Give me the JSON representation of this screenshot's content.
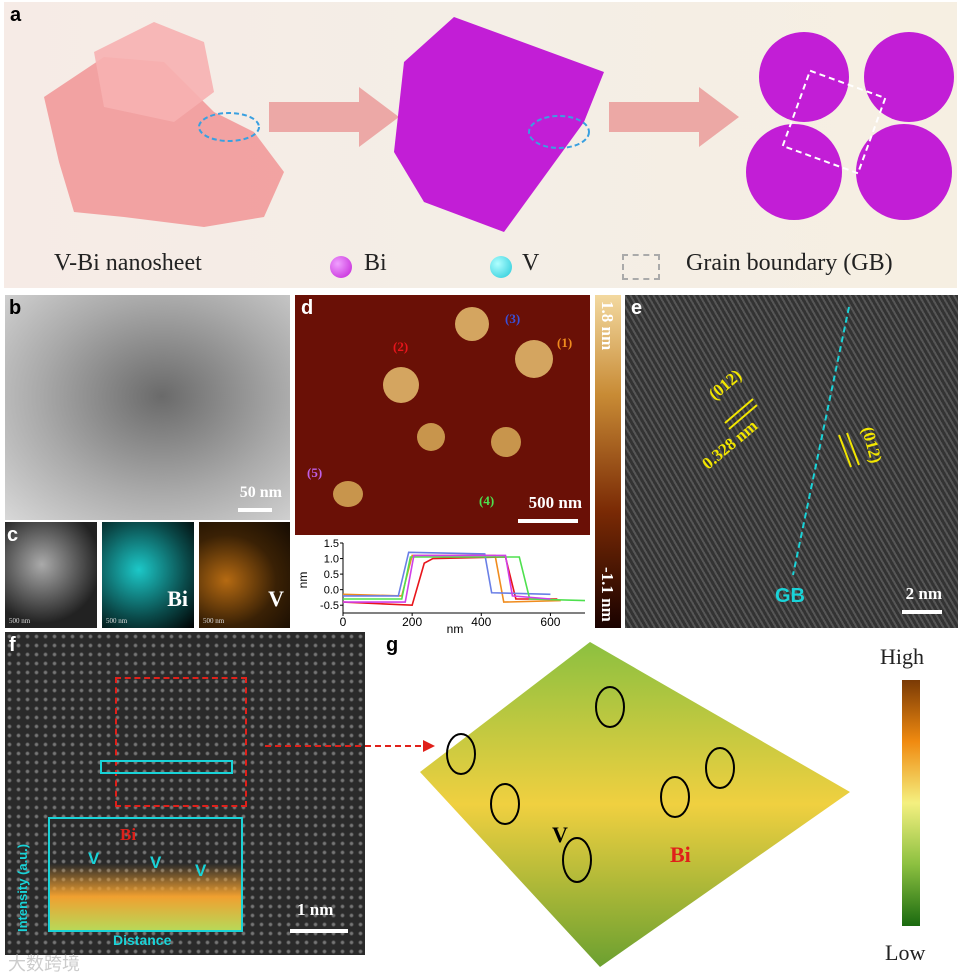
{
  "panels": {
    "a": {
      "label": "a",
      "legend": {
        "nanosheet": "V-Bi nanosheet",
        "bi": "Bi",
        "v": "V",
        "gb": "Grain boundary (GB)"
      }
    },
    "b": {
      "label": "b",
      "scale": "50 nm"
    },
    "c": {
      "label": "c",
      "maps": [
        {
          "label": "",
          "scale": "500 nm"
        },
        {
          "label": "Bi",
          "scale": "500 nm"
        },
        {
          "label": "V",
          "scale": "500 nm"
        }
      ]
    },
    "d": {
      "label": "d",
      "scale": "500 nm",
      "profiles": [
        "(1)",
        "(2)",
        "(3)",
        "(4)",
        "(5)"
      ],
      "colorbar": {
        "max": "1.8 nm",
        "min": "-1.1 nm"
      }
    },
    "e": {
      "label": "e",
      "plane1": "(012)",
      "spacing": "0.328 nm",
      "plane2": "(012)",
      "gb": "GB",
      "scale": "2 nm"
    },
    "f": {
      "label": "f",
      "inset": {
        "ylabel": "Intensity (a.u.)",
        "xlabel": "Distance",
        "bi": "Bi",
        "v1": "V",
        "v2": "V",
        "v3": "V"
      },
      "scale": "1 nm"
    },
    "g": {
      "label": "g",
      "v": "V",
      "bi": "Bi",
      "high": "High",
      "low": "Low"
    }
  },
  "colors": {
    "bi": "#cc22dd",
    "v": "#22c8d8",
    "cyan": "#19d3d8",
    "yellow": "#f2e600"
  },
  "watermark": "大数跨境",
  "chart_data": {
    "type": "line",
    "xlabel": "nm",
    "ylabel": "nm",
    "xlim": [
      0,
      700
    ],
    "ylim": [
      -0.75,
      1.5
    ],
    "xticks": [
      "0",
      "200",
      "400",
      "600"
    ],
    "yticks": [
      "1.5",
      "1.0",
      "0.5",
      "0.0",
      "-0.5"
    ],
    "series": [
      {
        "name": "(1)",
        "color": "#f08c1e",
        "x": [
          0,
          170,
          200,
          440,
          465,
          630
        ],
        "y": [
          -0.15,
          -0.2,
          1.1,
          1.1,
          -0.4,
          -0.35
        ]
      },
      {
        "name": "(2)",
        "color": "#e8151b",
        "x": [
          0,
          200,
          235,
          260,
          470,
          500,
          620
        ],
        "y": [
          -0.4,
          -0.5,
          0.85,
          1.0,
          1.05,
          -0.3,
          -0.3
        ]
      },
      {
        "name": "(3)",
        "color": "#6a7fe6",
        "x": [
          0,
          160,
          190,
          410,
          430,
          600
        ],
        "y": [
          -0.2,
          -0.2,
          1.2,
          1.15,
          -0.1,
          -0.15
        ]
      },
      {
        "name": "(4)",
        "color": "#4ee04e",
        "x": [
          0,
          170,
          195,
          510,
          540,
          700
        ],
        "y": [
          -0.3,
          -0.3,
          1.05,
          1.05,
          -0.3,
          -0.35
        ]
      },
      {
        "name": "(5)",
        "color": "#d040e8",
        "x": [
          0,
          180,
          205,
          470,
          490,
          600
        ],
        "y": [
          -0.4,
          -0.4,
          1.1,
          1.1,
          -0.2,
          -0.3
        ]
      }
    ]
  }
}
